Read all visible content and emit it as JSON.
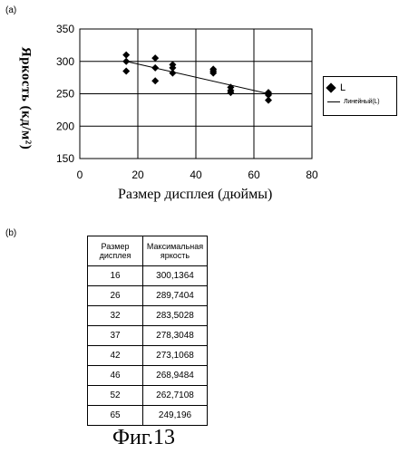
{
  "figure": {
    "label_a": "(a)",
    "label_b": "(b)",
    "caption": "Фиг.13"
  },
  "chart_data": {
    "type": "scatter",
    "ylabel": "Яркость (кд/м²)",
    "xlabel": "Размер дисплея (дюймы)",
    "xlim": [
      0,
      80
    ],
    "ylim": [
      150,
      350
    ],
    "xticks": [
      "0",
      "20",
      "40",
      "60",
      "80"
    ],
    "yticks": [
      "150",
      "200",
      "250",
      "300",
      "350"
    ],
    "grid": true,
    "legend_position": "right",
    "series": [
      {
        "name": "L",
        "marker": "diamond",
        "points": [
          [
            16,
            310
          ],
          [
            16,
            300
          ],
          [
            16,
            285
          ],
          [
            26,
            305
          ],
          [
            26,
            290
          ],
          [
            26,
            270
          ],
          [
            32,
            295
          ],
          [
            32,
            290
          ],
          [
            32,
            282
          ],
          [
            46,
            288
          ],
          [
            46,
            285
          ],
          [
            46,
            282
          ],
          [
            52,
            260
          ],
          [
            52,
            255
          ],
          [
            52,
            252
          ],
          [
            65,
            252
          ],
          [
            65,
            248
          ],
          [
            65,
            240
          ]
        ]
      },
      {
        "name": "Линейный(L)",
        "type": "line",
        "points": [
          [
            16,
            300
          ],
          [
            65,
            250
          ]
        ]
      }
    ],
    "legend": {
      "marker_label": "L",
      "line_label": "Линейный(L)"
    }
  },
  "table": {
    "headers": [
      "Размер дисплея",
      "Максимальная яркость"
    ],
    "rows": [
      [
        "16",
        "300,1364"
      ],
      [
        "26",
        "289,7404"
      ],
      [
        "32",
        "283,5028"
      ],
      [
        "37",
        "278,3048"
      ],
      [
        "42",
        "273,1068"
      ],
      [
        "46",
        "268,9484"
      ],
      [
        "52",
        "262,7108"
      ],
      [
        "65",
        "249,196"
      ]
    ]
  }
}
